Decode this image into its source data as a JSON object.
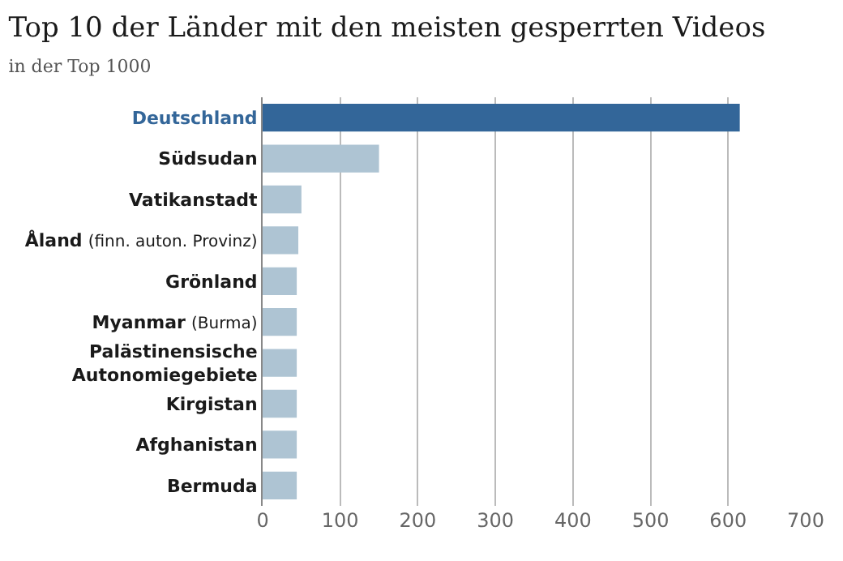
{
  "chart_data": {
    "type": "bar",
    "orientation": "horizontal",
    "title": "Top 10 der Länder mit den meisten gesperrten Videos",
    "subtitle": "in der Top 1000",
    "categories": [
      "Deutschland",
      "Südsudan",
      "Vatikanstadt",
      "Åland (finn. auton. Provinz)",
      "Grönland",
      "Myanmar (Burma)",
      "Palästinensische Autonomiegebiete",
      "Kirgistan",
      "Afghanistan",
      "Bermuda"
    ],
    "values": [
      615,
      150,
      50,
      46,
      44,
      44,
      44,
      44,
      44,
      44
    ],
    "colors": [
      "#336699",
      "#aec4d3",
      "#aec4d3",
      "#aec4d3",
      "#aec4d3",
      "#aec4d3",
      "#aec4d3",
      "#aec4d3",
      "#aec4d3",
      "#aec4d3"
    ],
    "xlim": [
      0,
      700
    ],
    "xticks": [
      0,
      100,
      200,
      300,
      400,
      500,
      600,
      700
    ],
    "grid": "x"
  }
}
